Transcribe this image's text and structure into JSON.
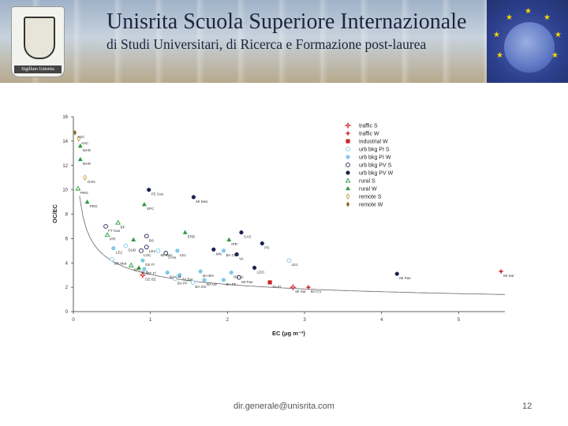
{
  "header": {
    "title_line1": "Unisrita  Scuola Superiore Internazionale",
    "title_line2": "di Studi Universitari, di Ricerca e Formazione post-laurea",
    "crest_label": "Sigillum Unisrita"
  },
  "footer": {
    "email": "dir.generale@unisrita.com",
    "page_number": "12"
  },
  "chart_data": {
    "type": "scatter",
    "xlabel": "EC (μg m⁻³)",
    "ylabel": "OC/EC",
    "xlim": [
      0,
      5.6
    ],
    "ylim": [
      0,
      16
    ],
    "xticks": [
      0,
      1,
      2,
      3,
      4,
      5
    ],
    "yticks": [
      0,
      2,
      4,
      6,
      8,
      10,
      12,
      14,
      16
    ],
    "legend_position": "top-right",
    "fit_curve": {
      "type": "power",
      "a": 3.05,
      "b": -0.45
    },
    "series": [
      {
        "name": "traffic S",
        "marker": "star-open",
        "color": "#cc2222"
      },
      {
        "name": "traffic W",
        "marker": "star",
        "color": "#cc2222"
      },
      {
        "name": "industrial W",
        "marker": "square",
        "color": "#cc2222"
      },
      {
        "name": "urb bkg PI S",
        "marker": "circle-open",
        "color": "#7ec8e8"
      },
      {
        "name": "urb bkg PI W",
        "marker": "circle",
        "color": "#7ec8e8"
      },
      {
        "name": "urb bkg PV S",
        "marker": "circle-open",
        "color": "#1a2350"
      },
      {
        "name": "urb bkg PV W",
        "marker": "circle",
        "color": "#1a2350"
      },
      {
        "name": "rural S",
        "marker": "triangle-open",
        "color": "#2a9a3a"
      },
      {
        "name": "rural W",
        "marker": "triangle",
        "color": "#2a9a3a"
      },
      {
        "name": "remote S",
        "marker": "diamond-open",
        "color": "#c9a040"
      },
      {
        "name": "remote W",
        "marker": "diamond",
        "color": "#8a6a20"
      }
    ],
    "points": [
      {
        "x": 0.02,
        "y": 14.7,
        "s": 10,
        "label": "ASC"
      },
      {
        "x": 0.07,
        "y": 14.2,
        "s": 9,
        "label": "ASC"
      },
      {
        "x": 0.09,
        "y": 13.6,
        "s": 8,
        "label": "MAR"
      },
      {
        "x": 0.09,
        "y": 12.5,
        "s": 8,
        "label": "MAR"
      },
      {
        "x": 0.15,
        "y": 11.0,
        "s": 9,
        "label": "GVN"
      },
      {
        "x": 0.06,
        "y": 10.1,
        "s": 7,
        "label": "PRG"
      },
      {
        "x": 0.18,
        "y": 9.0,
        "s": 8,
        "label": "PRG"
      },
      {
        "x": 0.92,
        "y": 8.8,
        "s": 8,
        "label": "SPC"
      },
      {
        "x": 0.98,
        "y": 10.0,
        "s": 6,
        "label": "FE Cas"
      },
      {
        "x": 1.56,
        "y": 9.4,
        "s": 6,
        "label": "MI Mes"
      },
      {
        "x": 0.42,
        "y": 7.0,
        "s": 5,
        "label": "FT Cas"
      },
      {
        "x": 0.58,
        "y": 7.3,
        "s": 7,
        "label": "BF"
      },
      {
        "x": 0.44,
        "y": 6.3,
        "s": 7,
        "label": "IPR"
      },
      {
        "x": 0.78,
        "y": 5.9,
        "s": 8,
        "label": ""
      },
      {
        "x": 0.68,
        "y": 5.4,
        "s": 3,
        "label": "DUB"
      },
      {
        "x": 0.52,
        "y": 5.2,
        "s": 4,
        "label": "LE2"
      },
      {
        "x": 0.95,
        "y": 6.2,
        "s": 5,
        "label": "BS"
      },
      {
        "x": 1.45,
        "y": 6.5,
        "s": 8,
        "label": "ERB"
      },
      {
        "x": 0.95,
        "y": 5.3,
        "s": 5,
        "label": "Lilm"
      },
      {
        "x": 0.88,
        "y": 5.0,
        "s": 5,
        "label": "LOC"
      },
      {
        "x": 1.1,
        "y": 5.0,
        "s": 3,
        "label": "MI Mes"
      },
      {
        "x": 1.35,
        "y": 5.0,
        "s": 4,
        "label": "LE1"
      },
      {
        "x": 1.2,
        "y": 4.8,
        "s": 5,
        "label": "CAN"
      },
      {
        "x": 2.02,
        "y": 5.9,
        "s": 8,
        "label": "IPR"
      },
      {
        "x": 2.18,
        "y": 6.5,
        "s": 6,
        "label": "CAS"
      },
      {
        "x": 2.45,
        "y": 5.6,
        "s": 6,
        "label": "PS"
      },
      {
        "x": 1.82,
        "y": 5.1,
        "s": 6,
        "label": "MN"
      },
      {
        "x": 1.95,
        "y": 5.0,
        "s": 4,
        "label": "BA CM"
      },
      {
        "x": 2.12,
        "y": 4.7,
        "s": 6,
        "label": "VA"
      },
      {
        "x": 2.8,
        "y": 4.2,
        "s": 3,
        "label": "LE1"
      },
      {
        "x": 0.5,
        "y": 4.3,
        "s": 3,
        "label": "BR Mat"
      },
      {
        "x": 0.9,
        "y": 4.2,
        "s": 4,
        "label": "GE Fl"
      },
      {
        "x": 0.85,
        "y": 3.6,
        "s": 8,
        "label": "DLB"
      },
      {
        "x": 0.75,
        "y": 3.8,
        "s": 7,
        "label": "SPC"
      },
      {
        "x": 0.92,
        "y": 3.5,
        "s": 4,
        "label": "GE Fl"
      },
      {
        "x": 0.9,
        "y": 3.0,
        "s": 0,
        "label": "GE BZ"
      },
      {
        "x": 1.22,
        "y": 3.2,
        "s": 4,
        "label": "BA CM"
      },
      {
        "x": 1.38,
        "y": 3.0,
        "s": 4,
        "label": "TA Bar"
      },
      {
        "x": 1.65,
        "y": 3.3,
        "s": 4,
        "label": "BA BN"
      },
      {
        "x": 1.32,
        "y": 2.7,
        "s": 3,
        "label": "BA PF"
      },
      {
        "x": 1.55,
        "y": 2.4,
        "s": 3,
        "label": "BA SN"
      },
      {
        "x": 1.7,
        "y": 2.6,
        "s": 4,
        "label": "BA Ulr"
      },
      {
        "x": 1.95,
        "y": 2.6,
        "s": 4,
        "label": "BA PF"
      },
      {
        "x": 2.05,
        "y": 3.2,
        "s": 4,
        "label": "BA JA"
      },
      {
        "x": 2.15,
        "y": 2.8,
        "s": 5,
        "label": "MI Pas"
      },
      {
        "x": 2.35,
        "y": 3.6,
        "s": 6,
        "label": "LDO"
      },
      {
        "x": 2.55,
        "y": 2.4,
        "s": 2,
        "label": "TA Pr"
      },
      {
        "x": 2.85,
        "y": 2.0,
        "s": 0,
        "label": "MI Sar"
      },
      {
        "x": 3.05,
        "y": 2.0,
        "s": 1,
        "label": "BA CV"
      },
      {
        "x": 4.2,
        "y": 3.1,
        "s": 6,
        "label": "MI Pas"
      },
      {
        "x": 5.55,
        "y": 3.3,
        "s": 1,
        "label": "MI Sar"
      }
    ]
  }
}
